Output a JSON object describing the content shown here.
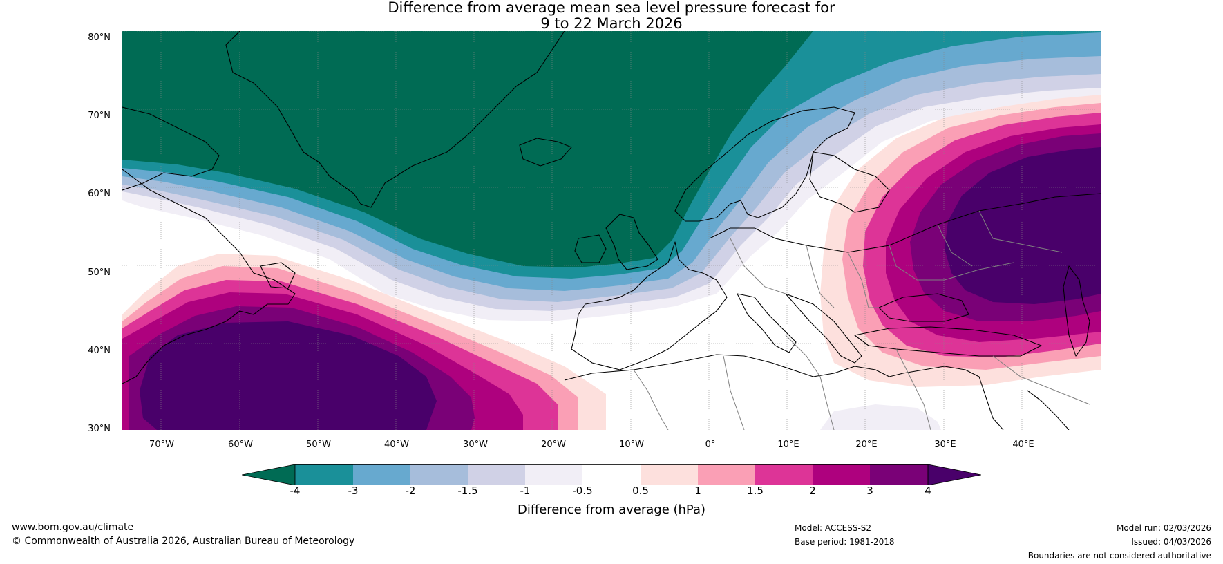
{
  "title": {
    "line1": "Difference from average mean sea level pressure forecast for",
    "line2": "9 to 22 March 2026"
  },
  "axes": {
    "lat_labels": [
      "80°N",
      "70°N",
      "60°N",
      "50°N",
      "40°N",
      "30°N"
    ],
    "lon_labels": [
      "70°W",
      "60°W",
      "50°W",
      "40°W",
      "30°W",
      "20°W",
      "10°W",
      "0°",
      "10°E",
      "20°E",
      "30°E",
      "40°E"
    ]
  },
  "colorbar": {
    "ticks": [
      "-4",
      "-3",
      "-2",
      "-1.5",
      "-1",
      "-0.5",
      "0.5",
      "1",
      "1.5",
      "2",
      "3",
      "4"
    ],
    "colors": [
      "#006B54",
      "#1A9099",
      "#67A9CF",
      "#A6BDDB",
      "#D0D1E6",
      "#F1EEF6",
      "#FFFFFF",
      "#FDE0DD",
      "#FA9FB5",
      "#DD3497",
      "#AE017E",
      "#7A0177",
      "#49006A"
    ],
    "label": "Difference from average (hPa)"
  },
  "footer": {
    "url": "www.bom.gov.au/climate",
    "copyright": "© Commonwealth of Australia 2026, Australian Bureau of Meteorology",
    "model": "Model: ACCESS-S2",
    "base_period": "Base period: 1981-2018",
    "model_run": "Model run: 02/03/2026",
    "issued": "Issued: 04/03/2026",
    "disclaimer": "Boundaries are not considered authoritative"
  }
}
